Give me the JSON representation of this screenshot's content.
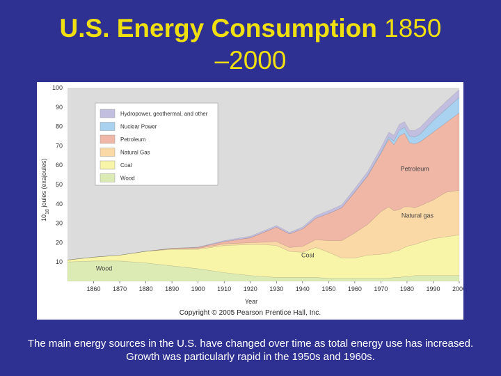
{
  "slide": {
    "title_bold": "U.S. Energy Consumption",
    "title_rest_1": " 1850",
    "title_line2": "–2000",
    "caption": "The main energy sources in the U.S. have changed over time as total energy use has increased. Growth was particularly rapid in the 1950s and 1960s.",
    "copyright": "Copyright © 2005 Pearson Prentice Hall, Inc."
  },
  "chart_data": {
    "type": "area",
    "title": "U.S. Energy Consumption 1850–2000",
    "xlabel": "Year",
    "ylabel_main": "10",
    "ylabel_exp": "18",
    "ylabel_rest": " joules (exajoules)",
    "xlim": [
      1850,
      2000
    ],
    "ylim": [
      0,
      100
    ],
    "x_ticks": [
      "1860",
      "1870",
      "1880",
      "1890",
      "1900",
      "1910",
      "1920",
      "1930",
      "1940",
      "1950",
      "1960",
      "1970",
      "1980",
      "1990",
      "2000"
    ],
    "y_ticks": [
      "10",
      "20",
      "30",
      "40",
      "50",
      "60",
      "70",
      "80",
      "90",
      "100"
    ],
    "stacking_order": [
      "Wood",
      "Coal",
      "Natural Gas",
      "Petroleum",
      "Nuclear Power",
      "Hydropower, geothermal, and other"
    ],
    "years": [
      1850,
      1860,
      1870,
      1880,
      1890,
      1900,
      1910,
      1920,
      1925,
      1930,
      1935,
      1940,
      1945,
      1950,
      1955,
      1960,
      1965,
      1970,
      1973,
      1975,
      1977,
      1979,
      1981,
      1983,
      1985,
      1990,
      1995,
      2000
    ],
    "series": [
      {
        "name": "Wood",
        "color": "#dcebb4",
        "values": [
          10,
          10.5,
          10.5,
          9.5,
          8,
          6.5,
          4.5,
          3,
          2.5,
          2,
          2,
          2,
          2,
          1.5,
          1.5,
          1.5,
          1.5,
          1.5,
          1.5,
          2,
          2,
          2.5,
          2.5,
          3,
          3,
          3,
          3,
          3
        ]
      },
      {
        "name": "Coal",
        "color": "#f8f4a8",
        "values": [
          1,
          2,
          3,
          6,
          8.5,
          10,
          14,
          16,
          16.5,
          16.5,
          13.5,
          13,
          15.5,
          13.5,
          10.5,
          10.5,
          12,
          12.5,
          13,
          13.5,
          14,
          15,
          16,
          16,
          17,
          19,
          20,
          21
        ]
      },
      {
        "name": "Natural Gas",
        "color": "#fbd9a6",
        "values": [
          0,
          0,
          0,
          0,
          0.3,
          0.5,
          0.8,
          1,
          1.2,
          2,
          2,
          3,
          4,
          6,
          9,
          13,
          16,
          22,
          24,
          21,
          21,
          21,
          20,
          19,
          19,
          20,
          23,
          23
        ]
      },
      {
        "name": "Petroleum",
        "color": "#f0b6a6",
        "values": [
          0,
          0,
          0,
          0,
          0.2,
          0.5,
          1.2,
          2.5,
          5,
          7.5,
          7,
          9,
          11,
          14,
          17,
          21,
          25,
          30,
          35,
          34,
          38,
          38,
          33,
          33,
          33,
          35,
          36,
          40
        ]
      },
      {
        "name": "Nuclear Power",
        "color": "#a8d2f0",
        "values": [
          0,
          0,
          0,
          0,
          0,
          0,
          0,
          0,
          0,
          0,
          0,
          0,
          0,
          0,
          0,
          0.2,
          0.3,
          0.5,
          1,
          2,
          3,
          3,
          3.5,
          3.5,
          4,
          6,
          7,
          8
        ]
      },
      {
        "name": "Hydropower, geothermal, and other",
        "color": "#c2bee0",
        "values": [
          0,
          0,
          0,
          0,
          0,
          0.2,
          0.5,
          0.8,
          0.8,
          0.8,
          0.8,
          1,
          1.3,
          1.5,
          1.5,
          1.8,
          2,
          2.5,
          2.5,
          3,
          3,
          3,
          3,
          3.5,
          3.5,
          3.5,
          4,
          4
        ]
      }
    ],
    "legend": [
      {
        "label": "Hydropower, geothermal, and other",
        "color": "#c2bee0"
      },
      {
        "label": "Nuclear Power",
        "color": "#a8d2f0"
      },
      {
        "label": "Petroleum",
        "color": "#f0b6a6"
      },
      {
        "label": "Natural Gas",
        "color": "#fbd9a6"
      },
      {
        "label": "Coal",
        "color": "#f8f4a8"
      },
      {
        "label": "Wood",
        "color": "#dcebb4"
      }
    ],
    "legend_position": "top-left",
    "area_labels": [
      "Wood",
      "Coal",
      "Natural gas",
      "Petroleum"
    ],
    "background_color": "#dcdcdc"
  }
}
